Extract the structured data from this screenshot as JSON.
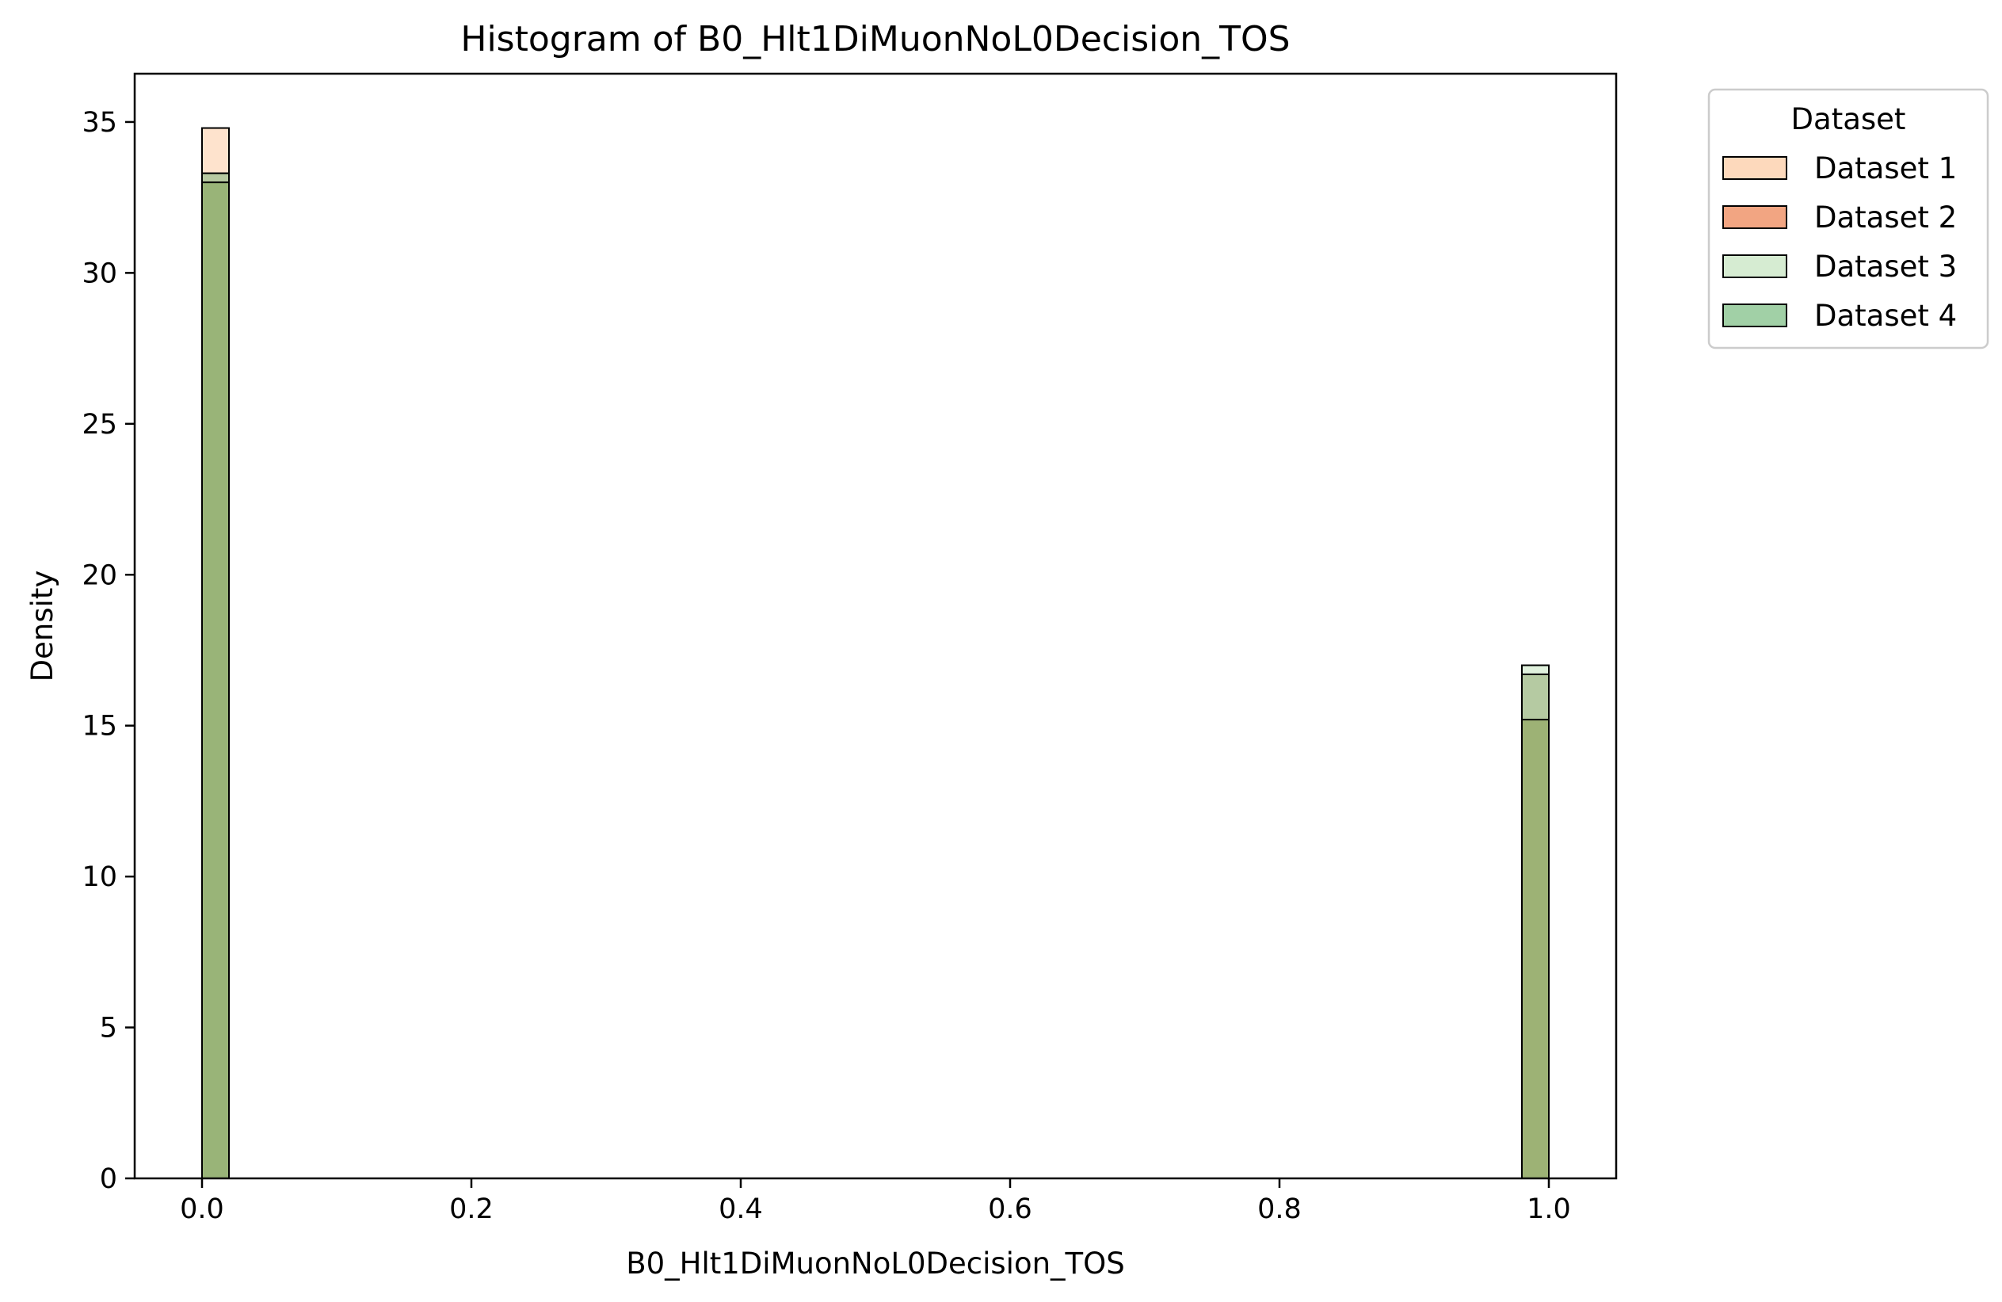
{
  "chart_data": {
    "type": "histogram",
    "title": "Histogram of B0_Hlt1DiMuonNoL0Decision_TOS",
    "xlabel": "B0_Hlt1DiMuonNoL0Decision_TOS",
    "ylabel": "Density",
    "xlim": [
      -0.05,
      1.05
    ],
    "ylim": [
      0,
      36.6
    ],
    "xticks": [
      0.0,
      0.2,
      0.4,
      0.6,
      0.8,
      1.0
    ],
    "xtick_labels": [
      "0.0",
      "0.2",
      "0.4",
      "0.6",
      "0.8",
      "1.0"
    ],
    "yticks": [
      0,
      5,
      10,
      15,
      20,
      25,
      30,
      35
    ],
    "ytick_labels": [
      "0",
      "5",
      "10",
      "15",
      "20",
      "25",
      "30",
      "35"
    ],
    "bin_width": 0.02,
    "bins": [
      [
        0.0,
        0.02
      ],
      [
        0.98,
        1.0
      ]
    ],
    "legend": {
      "title": "Dataset",
      "placement": "outside-upper-right"
    },
    "series": [
      {
        "name": "Dataset 1",
        "color": "#fdd9bc",
        "values": [
          34.8,
          15.2
        ]
      },
      {
        "name": "Dataset 2",
        "color": "#f2a582",
        "values": [
          33.3,
          16.7
        ]
      },
      {
        "name": "Dataset 3",
        "color": "#d6ecd2",
        "values": [
          33.0,
          17.0
        ]
      },
      {
        "name": "Dataset 4",
        "color": "#a1d0a6",
        "values": [
          33.3,
          16.7
        ]
      }
    ],
    "overlap_color": "#8fab6a",
    "grid": false
  }
}
